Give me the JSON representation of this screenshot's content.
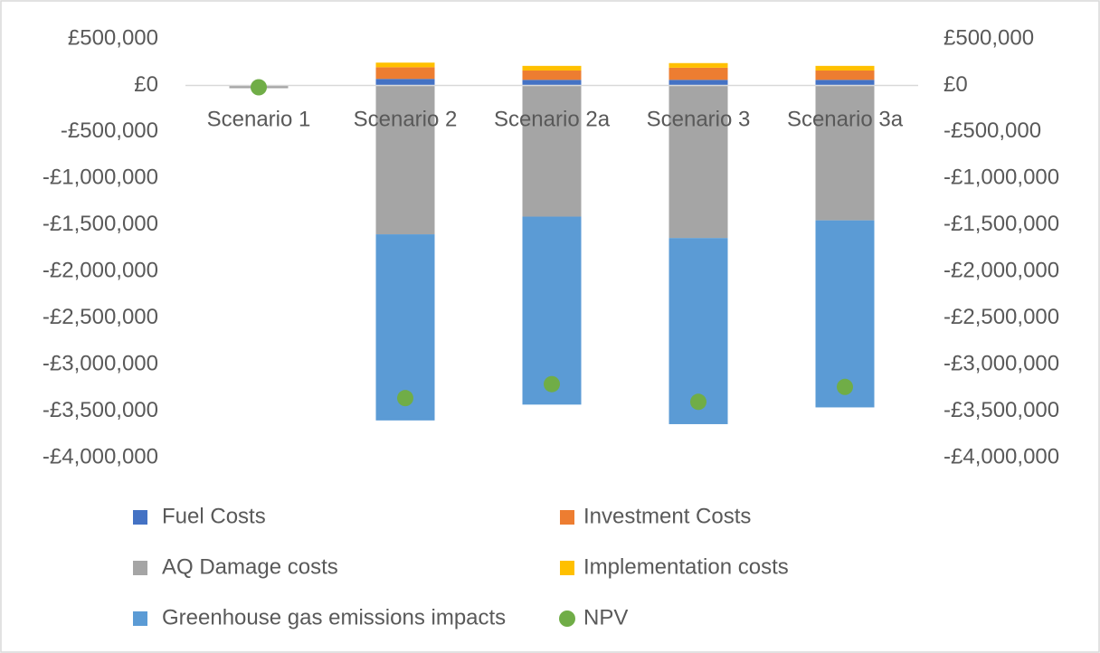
{
  "chart_data": {
    "type": "bar",
    "stacked": true,
    "categories": [
      "Scenario 1",
      "Scenario 2",
      "Scenario 2a",
      "Scenario 3",
      "Scenario 3a"
    ],
    "series": [
      {
        "name": "Fuel Costs",
        "color": "#4472c4",
        "type": "bar",
        "values": [
          0,
          70000,
          60000,
          60000,
          60000
        ]
      },
      {
        "name": "Investment Costs",
        "color": "#ed7d31",
        "type": "bar",
        "values": [
          0,
          125000,
          100000,
          130000,
          100000
        ]
      },
      {
        "name": "AQ Damage costs",
        "color": "#a5a5a5",
        "type": "bar",
        "values": [
          -30000,
          -1600000,
          -1410000,
          -1640000,
          -1450000
        ]
      },
      {
        "name": "Implementation costs",
        "color": "#ffc000",
        "type": "bar",
        "values": [
          0,
          50000,
          50000,
          50000,
          50000
        ]
      },
      {
        "name": "Greenhouse gas emissions impacts",
        "color": "#5b9bd5",
        "type": "bar",
        "values": [
          0,
          -2000000,
          -2020000,
          -2000000,
          -2010000
        ]
      },
      {
        "name": "NPV",
        "color": "#70ad47",
        "type": "scatter",
        "values": [
          -20000,
          -3360000,
          -3210000,
          -3400000,
          -3240000
        ]
      }
    ],
    "ylim": [
      -4000000,
      500000
    ],
    "yticks": [
      {
        "value": 500000,
        "label": "£500,000"
      },
      {
        "value": 0,
        "label": "£0"
      },
      {
        "value": -500000,
        "label": "-£500,000"
      },
      {
        "value": -1000000,
        "label": "-£1,000,000"
      },
      {
        "value": -1500000,
        "label": "-£1,500,000"
      },
      {
        "value": -2000000,
        "label": "-£2,000,000"
      },
      {
        "value": -2500000,
        "label": "-£2,500,000"
      },
      {
        "value": -3000000,
        "label": "-£3,000,000"
      },
      {
        "value": -3500000,
        "label": "-£3,500,000"
      },
      {
        "value": -4000000,
        "label": "-£4,000,000"
      }
    ],
    "y2lim": [
      -4000000,
      500000
    ],
    "y2ticks": [
      {
        "value": 500000,
        "label": "£500,000"
      },
      {
        "value": 0,
        "label": "£0"
      },
      {
        "value": -500000,
        "label": "-£500,000"
      },
      {
        "value": -1000000,
        "label": "-£1,000,000"
      },
      {
        "value": -1500000,
        "label": "-£1,500,000"
      },
      {
        "value": -2000000,
        "label": "-£2,000,000"
      },
      {
        "value": -2500000,
        "label": "-£2,500,000"
      },
      {
        "value": -3000000,
        "label": "-£3,000,000"
      },
      {
        "value": -3500000,
        "label": "-£3,500,000"
      },
      {
        "value": -4000000,
        "label": "-£4,000,000"
      }
    ],
    "grid": false
  }
}
